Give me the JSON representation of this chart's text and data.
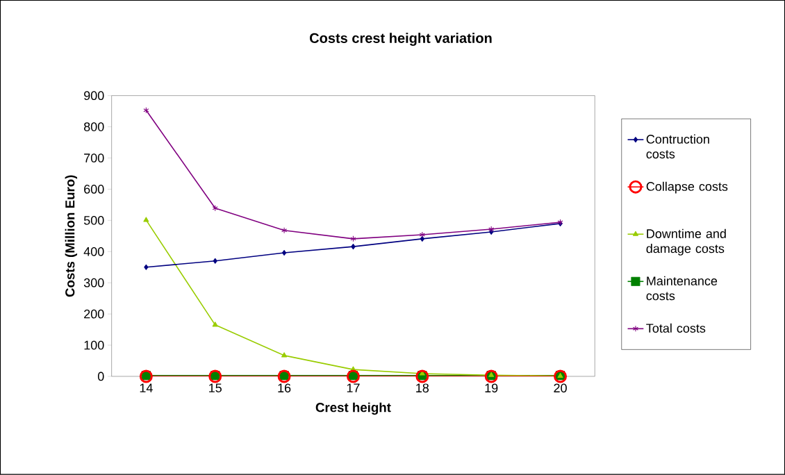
{
  "chart_data": {
    "type": "line",
    "title": "Costs crest height variation",
    "xlabel": "Crest height",
    "ylabel": "Costs (Million Euro)",
    "x": [
      14,
      15,
      16,
      17,
      18,
      19,
      20
    ],
    "series": [
      {
        "name": "Contruction costs",
        "color": "#000080",
        "marker": "diamond",
        "values": [
          350,
          370,
          396,
          416,
          441,
          463,
          490
        ]
      },
      {
        "name": "Collapse costs",
        "color": "#ff0000",
        "marker": "circle",
        "values": [
          0,
          0,
          0,
          0,
          0,
          0,
          0
        ]
      },
      {
        "name": "Downtime and damage costs",
        "color": "#99cc00",
        "marker": "triangle",
        "values": [
          501,
          165,
          67,
          22,
          9,
          4,
          1
        ]
      },
      {
        "name": "Maintenance costs",
        "color": "#008000",
        "marker": "square",
        "values": [
          3,
          3,
          3,
          3,
          3,
          3,
          3
        ]
      },
      {
        "name": "Total costs",
        "color": "#800080",
        "marker": "cross",
        "values": [
          853,
          539,
          468,
          441,
          454,
          472,
          494
        ]
      }
    ],
    "xlim": [
      13.5,
      20.5
    ],
    "ylim": [
      0,
      900
    ],
    "xticks": [
      14,
      15,
      16,
      17,
      18,
      19,
      20
    ],
    "yticks": [
      0,
      100,
      200,
      300,
      400,
      500,
      600,
      700,
      800,
      900
    ],
    "grid": false,
    "legend": "right"
  }
}
